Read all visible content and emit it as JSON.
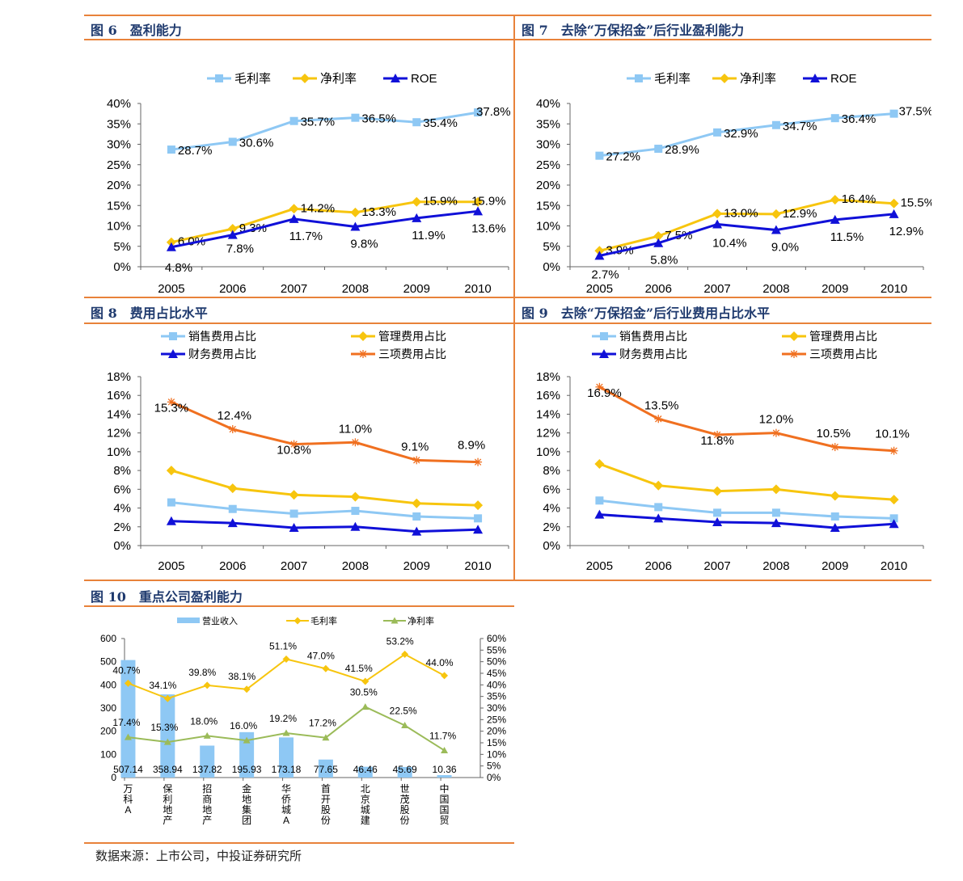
{
  "source": "数据来源：上市公司，中投证券研究所",
  "charts": [
    {
      "id": "fig6",
      "title": "图 6　盈利能力",
      "chart_data": {
        "type": "line",
        "categories": [
          "2005",
          "2006",
          "2007",
          "2008",
          "2009",
          "2010"
        ],
        "ylim": [
          0,
          40
        ],
        "yticks": [
          "0%",
          "5%",
          "10%",
          "15%",
          "20%",
          "25%",
          "30%",
          "35%",
          "40%"
        ],
        "series": [
          {
            "name": "毛利率",
            "color": "#8ec8f4",
            "marker": "square",
            "values": [
              28.7,
              30.6,
              35.7,
              36.5,
              35.4,
              37.8
            ],
            "labels": [
              "28.7%",
              "30.6%",
              "35.7%",
              "36.5%",
              "35.4%",
              "37.8%"
            ]
          },
          {
            "name": "净利率",
            "color": "#f7c50e",
            "marker": "diamond",
            "values": [
              6.0,
              9.3,
              14.2,
              13.3,
              15.9,
              15.9
            ],
            "labels": [
              "6.0%",
              "9.3%",
              "14.2%",
              "13.3%",
              "15.9%",
              "15.9%"
            ]
          },
          {
            "name": "ROE",
            "color": "#1010d8",
            "marker": "triangle",
            "values": [
              4.8,
              7.8,
              11.7,
              9.8,
              11.9,
              13.6
            ],
            "labels": [
              "4.8%",
              "7.8%",
              "11.7%",
              "9.8%",
              "11.9%",
              "13.6%"
            ]
          }
        ]
      }
    },
    {
      "id": "fig7",
      "title": "图 7　去除“万保招金”后行业盈利能力",
      "chart_data": {
        "type": "line",
        "categories": [
          "2005",
          "2006",
          "2007",
          "2008",
          "2009",
          "2010"
        ],
        "ylim": [
          0,
          40
        ],
        "yticks": [
          "0%",
          "5%",
          "10%",
          "15%",
          "20%",
          "25%",
          "30%",
          "35%",
          "40%"
        ],
        "series": [
          {
            "name": "毛利率",
            "color": "#8ec8f4",
            "marker": "square",
            "values": [
              27.2,
              28.9,
              32.9,
              34.7,
              36.4,
              37.5
            ],
            "labels": [
              "27.2%",
              "28.9%",
              "32.9%",
              "34.7%",
              "36.4%",
              "37.5%"
            ]
          },
          {
            "name": "净利率",
            "color": "#f7c50e",
            "marker": "diamond",
            "values": [
              3.9,
              7.5,
              13.0,
              12.9,
              16.4,
              15.5
            ],
            "labels": [
              "3.9%",
              "7.5%",
              "13.0%",
              "12.9%",
              "16.4%",
              "15.5%"
            ]
          },
          {
            "name": "ROE",
            "color": "#1010d8",
            "marker": "triangle",
            "values": [
              2.7,
              5.8,
              10.4,
              9.0,
              11.5,
              12.9
            ],
            "labels": [
              "2.7%",
              "5.8%",
              "10.4%",
              "9.0%",
              "11.5%",
              "12.9%"
            ]
          }
        ]
      }
    },
    {
      "id": "fig8",
      "title": "图 8　费用占比水平",
      "chart_data": {
        "type": "line",
        "categories": [
          "2005",
          "2006",
          "2007",
          "2008",
          "2009",
          "2010"
        ],
        "ylim": [
          0,
          18
        ],
        "yticks": [
          "0%",
          "2%",
          "4%",
          "6%",
          "8%",
          "10%",
          "12%",
          "14%",
          "16%",
          "18%"
        ],
        "series": [
          {
            "name": "销售费用占比",
            "color": "#8ec8f4",
            "marker": "square",
            "values": [
              4.6,
              3.9,
              3.4,
              3.7,
              3.1,
              2.9
            ]
          },
          {
            "name": "管理费用占比",
            "color": "#f7c50e",
            "marker": "diamond",
            "values": [
              8.0,
              6.1,
              5.4,
              5.2,
              4.5,
              4.3
            ]
          },
          {
            "name": "财务费用占比",
            "color": "#1010d8",
            "marker": "triangle",
            "values": [
              2.6,
              2.4,
              1.9,
              2.0,
              1.5,
              1.7
            ]
          },
          {
            "name": "三项费用占比",
            "color": "#f07020",
            "marker": "star",
            "values": [
              15.3,
              12.4,
              10.8,
              11.0,
              9.1,
              8.9
            ],
            "labels": [
              "15.3%",
              "12.4%",
              "10.8%",
              "11.0%",
              "9.1%",
              "8.9%"
            ]
          }
        ]
      }
    },
    {
      "id": "fig9",
      "title": "图 9　去除“万保招金”后行业费用占比水平",
      "chart_data": {
        "type": "line",
        "categories": [
          "2005",
          "2006",
          "2007",
          "2008",
          "2009",
          "2010"
        ],
        "ylim": [
          0,
          18
        ],
        "yticks": [
          "0%",
          "2%",
          "4%",
          "6%",
          "8%",
          "10%",
          "12%",
          "14%",
          "16%",
          "18%"
        ],
        "series": [
          {
            "name": "销售费用占比",
            "color": "#8ec8f4",
            "marker": "square",
            "values": [
              4.8,
              4.1,
              3.5,
              3.5,
              3.1,
              2.9
            ]
          },
          {
            "name": "管理费用占比",
            "color": "#f7c50e",
            "marker": "diamond",
            "values": [
              8.7,
              6.4,
              5.8,
              6.0,
              5.3,
              4.9
            ]
          },
          {
            "name": "财务费用占比",
            "color": "#1010d8",
            "marker": "triangle",
            "values": [
              3.3,
              2.9,
              2.5,
              2.4,
              1.9,
              2.3
            ]
          },
          {
            "name": "三项费用占比",
            "color": "#f07020",
            "marker": "star",
            "values": [
              16.9,
              13.5,
              11.8,
              12.0,
              10.5,
              10.1
            ],
            "labels": [
              "16.9%",
              "13.5%",
              "11.8%",
              "12.0%",
              "10.5%",
              "10.1%"
            ]
          }
        ]
      }
    },
    {
      "id": "fig10",
      "title": "图 10　重点公司盈利能力",
      "chart_data": {
        "type": "bar",
        "categories": [
          "万科A",
          "保利地产",
          "招商地产",
          "金地集团",
          "华侨城A",
          "首开股份",
          "北京城建",
          "世茂股份",
          "中国国贸"
        ],
        "ylim_left": [
          0,
          600
        ],
        "yticks_left": [
          "0",
          "100",
          "200",
          "300",
          "400",
          "500",
          "600"
        ],
        "ylim_right": [
          0,
          60
        ],
        "yticks_right": [
          "0%",
          "5%",
          "10%",
          "15%",
          "20%",
          "25%",
          "30%",
          "35%",
          "40%",
          "45%",
          "50%",
          "55%",
          "60%"
        ],
        "bars": {
          "name": "营业收入",
          "color": "#8ec8f4",
          "values": [
            507.14,
            358.94,
            137.82,
            195.93,
            173.18,
            77.65,
            46.46,
            45.69,
            10.36
          ],
          "labels": [
            "507.14",
            "358.94",
            "137.82",
            "195.93",
            "173.18",
            "77.65",
            "46.46",
            "45.69",
            "10.36"
          ]
        },
        "series": [
          {
            "name": "毛利率",
            "color": "#f7c50e",
            "marker": "diamond",
            "values": [
              40.7,
              34.1,
              39.8,
              38.1,
              51.1,
              47.0,
              41.5,
              53.2,
              44.0
            ],
            "labels": [
              "40.7%",
              "34.1%",
              "39.8%",
              "38.1%",
              "51.1%",
              "47.0%",
              "41.5%",
              "53.2%",
              "44.0%"
            ]
          },
          {
            "name": "净利率",
            "color": "#9bbb59",
            "marker": "triangle",
            "values": [
              17.4,
              15.3,
              18.0,
              16.0,
              19.2,
              17.2,
              30.5,
              22.5,
              11.7
            ],
            "labels": [
              "17.4%",
              "15.3%",
              "18.0%",
              "16.0%",
              "19.2%",
              "17.2%",
              "30.5%",
              "22.5%",
              "11.7%"
            ]
          }
        ]
      }
    }
  ]
}
